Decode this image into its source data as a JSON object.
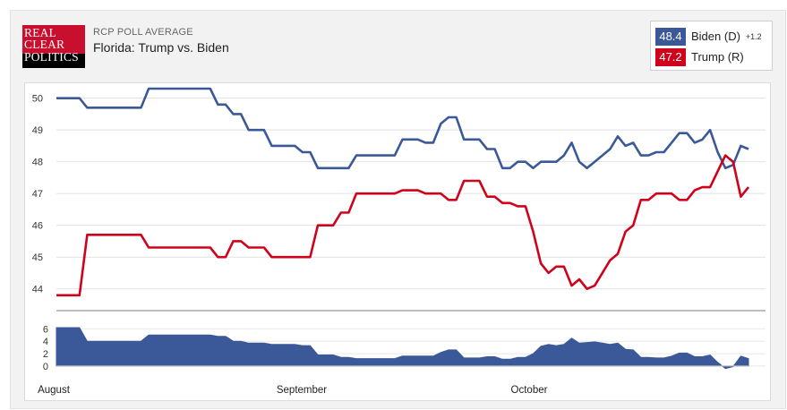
{
  "logo": {
    "lines": [
      "REAL",
      "CLEAR",
      "POLITICS"
    ]
  },
  "header": {
    "kicker": "RCP POLL AVERAGE",
    "title": "Florida: Trump vs. Biden"
  },
  "legend": {
    "biden": {
      "value": "48.4",
      "label": "Biden (D)",
      "spread": "+1.2",
      "color": "#3b5998"
    },
    "trump": {
      "value": "47.2",
      "label": "Trump (R)",
      "color": "#d0021b"
    }
  },
  "chart_data": [
    {
      "type": "line",
      "ylim": [
        43.4,
        50.3
      ],
      "yticks": [
        "44",
        "45",
        "46",
        "47",
        "48",
        "49",
        "50"
      ],
      "series": [
        {
          "name": "Biden (D)",
          "color": "#3b5998",
          "values": [
            50.0,
            50.0,
            50.0,
            50.0,
            49.7,
            49.7,
            49.7,
            49.7,
            49.7,
            49.7,
            49.7,
            49.7,
            50.3,
            50.3,
            50.3,
            50.3,
            50.3,
            50.3,
            50.3,
            50.3,
            50.3,
            49.8,
            49.8,
            49.5,
            49.5,
            49.0,
            49.0,
            49.0,
            48.5,
            48.5,
            48.5,
            48.5,
            48.3,
            48.3,
            47.8,
            47.8,
            47.8,
            47.8,
            47.8,
            48.2,
            48.2,
            48.2,
            48.2,
            48.2,
            48.2,
            48.7,
            48.7,
            48.7,
            48.6,
            48.6,
            49.2,
            49.4,
            49.4,
            48.7,
            48.7,
            48.7,
            48.4,
            48.4,
            47.8,
            47.8,
            48.0,
            48.0,
            47.8,
            48.0,
            48.0,
            48.0,
            48.2,
            48.6,
            48.0,
            47.8,
            48.0,
            48.2,
            48.4,
            48.8,
            48.5,
            48.6,
            48.2,
            48.2,
            48.3,
            48.3,
            48.6,
            48.9,
            48.9,
            48.6,
            48.7,
            49.0,
            48.3,
            47.8,
            47.9,
            48.5,
            48.4
          ]
        },
        {
          "name": "Trump (R)",
          "color": "#d0021b",
          "values": [
            43.8,
            43.8,
            43.8,
            43.8,
            45.7,
            45.7,
            45.7,
            45.7,
            45.7,
            45.7,
            45.7,
            45.7,
            45.3,
            45.3,
            45.3,
            45.3,
            45.3,
            45.3,
            45.3,
            45.3,
            45.3,
            45.0,
            45.0,
            45.5,
            45.5,
            45.3,
            45.3,
            45.3,
            45.0,
            45.0,
            45.0,
            45.0,
            45.0,
            45.0,
            46.0,
            46.0,
            46.0,
            46.4,
            46.4,
            47.0,
            47.0,
            47.0,
            47.0,
            47.0,
            47.0,
            47.1,
            47.1,
            47.1,
            47.0,
            47.0,
            47.0,
            46.8,
            46.8,
            47.4,
            47.4,
            47.4,
            46.9,
            46.9,
            46.7,
            46.7,
            46.6,
            46.6,
            45.8,
            44.8,
            44.5,
            44.7,
            44.7,
            44.1,
            44.3,
            44.0,
            44.1,
            44.5,
            44.9,
            45.1,
            45.8,
            46.0,
            46.8,
            46.8,
            47.0,
            47.0,
            47.0,
            46.8,
            46.8,
            47.1,
            47.2,
            47.2,
            47.7,
            48.2,
            48.0,
            46.9,
            47.2
          ]
        }
      ]
    },
    {
      "type": "area",
      "series_name": "Spread",
      "ylim": [
        -0.3,
        7.5
      ],
      "yticks": [
        "0",
        "2",
        "4",
        "6"
      ],
      "values": [
        6.2,
        6.2,
        6.2,
        6.2,
        4.0,
        4.0,
        4.0,
        4.0,
        4.0,
        4.0,
        4.0,
        4.0,
        5.0,
        5.0,
        5.0,
        5.0,
        5.0,
        5.0,
        5.0,
        5.0,
        5.0,
        4.8,
        4.8,
        4.0,
        4.0,
        3.7,
        3.7,
        3.7,
        3.5,
        3.5,
        3.5,
        3.5,
        3.3,
        3.3,
        1.8,
        1.8,
        1.8,
        1.4,
        1.4,
        1.2,
        1.2,
        1.2,
        1.2,
        1.2,
        1.2,
        1.6,
        1.6,
        1.6,
        1.6,
        1.6,
        2.2,
        2.6,
        2.6,
        1.3,
        1.3,
        1.3,
        1.5,
        1.5,
        1.1,
        1.1,
        1.4,
        1.4,
        2.0,
        3.2,
        3.5,
        3.3,
        3.5,
        4.5,
        3.7,
        3.8,
        3.9,
        3.7,
        3.5,
        3.7,
        2.7,
        2.6,
        1.4,
        1.4,
        1.3,
        1.3,
        1.6,
        2.1,
        2.1,
        1.5,
        1.5,
        1.8,
        0.6,
        -0.4,
        -0.1,
        1.6,
        1.2
      ],
      "color": "#3b5998"
    }
  ],
  "xaxis": {
    "labels": [
      "August",
      "September",
      "October"
    ]
  }
}
